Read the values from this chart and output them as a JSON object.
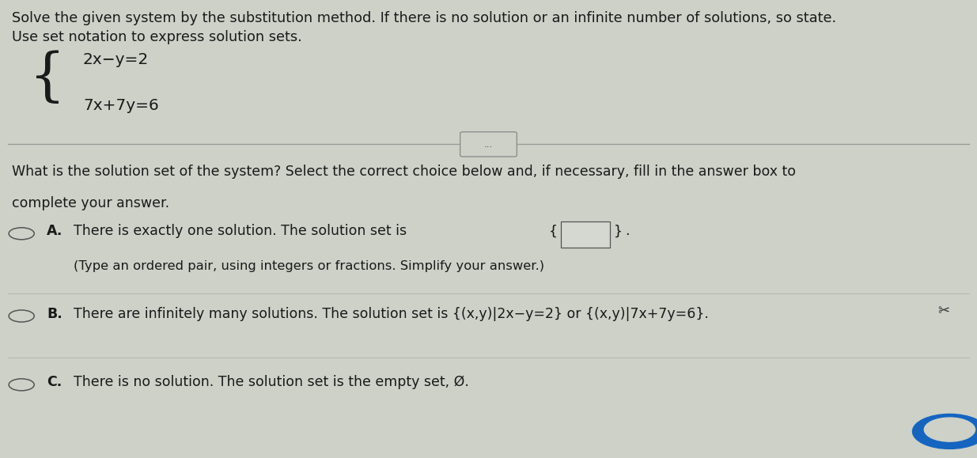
{
  "bg_color": "#cdd1c8",
  "text_color": "#1a1a1a",
  "fig_width": 12.35,
  "fig_height": 5.79,
  "title_line1": "Solve the given system by the substitution method. If there is no solution or an infinite number of solutions, so state.",
  "title_line2": "Use set notation to express solution sets.",
  "eq1": "2x−y=2",
  "eq2": "7x+7y=6",
  "question_line1": "What is the solution set of the system? Select the correct choice below and, if necessary, fill in the answer box to",
  "question_line2": "complete your answer.",
  "optionA_text": "There is exactly one solution. The solution set is {    }.",
  "optionA_sub": "(Type an ordered pair, using integers or fractions. Simplify your answer.)",
  "optionB_text": "There are infinitely many solutions. The solution set is {(x,y)|2x−y=2} or {(x,y)|7x+7y=6}.",
  "optionC_text": "There is no solution. The solution set is the empty set, Ø.",
  "separator_text": "...",
  "font_size_title": 12.8,
  "font_size_eq": 14.5,
  "font_size_options": 12.5,
  "font_size_sub": 11.8,
  "circle_color": "#555555",
  "line_color": "#888888",
  "scissors_color": "#333333",
  "button_color": "#1a5fa8"
}
